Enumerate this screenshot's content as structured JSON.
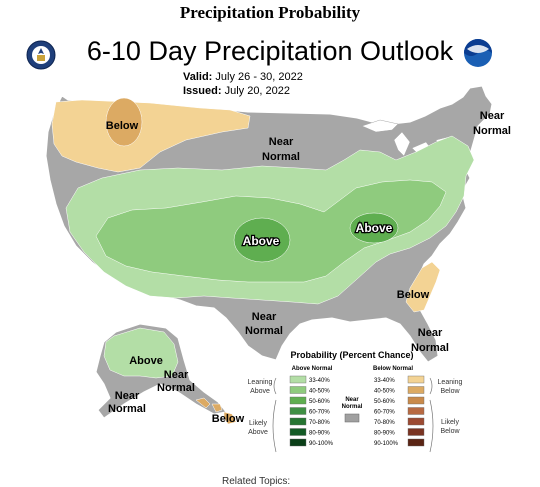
{
  "page": {
    "heading": "Precipitation Probability",
    "footer_text": "Related Topics:"
  },
  "map": {
    "title": "6-10 Day Precipitation Outlook",
    "valid_label": "Valid:",
    "valid_value": "July 26 - 30, 2022",
    "issued_label": "Issued:",
    "issued_value": "July 20, 2022",
    "left_logo_icon": "doc-seal-icon",
    "right_logo_icon": "noaa-logo-icon"
  },
  "regions": {
    "below_northwest": "Below",
    "near_normal_north_1": "Near",
    "near_normal_north_2": "Normal",
    "near_normal_northeast_1": "Near",
    "near_normal_northeast_2": "Normal",
    "above_plains": "Above",
    "above_ohio_valley": "Above",
    "below_southeast": "Below",
    "near_normal_south_1": "Near",
    "near_normal_south_2": "Normal",
    "near_normal_florida_1": "Near",
    "near_normal_florida_2": "Normal",
    "alaska_above": "Above",
    "alaska_near_1_a": "Near",
    "alaska_near_1_b": "Normal",
    "alaska_near_2_a": "Near",
    "alaska_near_2_b": "Normal",
    "hawaii_below": "Below"
  },
  "legend": {
    "title": "Probability (Percent Chance)",
    "above_header": "Above Normal",
    "below_header": "Below Normal",
    "near_normal_label_1": "Near",
    "near_normal_label_2": "Normal",
    "near_normal_color": "#a0a0a0",
    "leaning_above_1": "Leaning",
    "leaning_above_2": "Above",
    "likely_above_1": "Likely",
    "likely_above_2": "Above",
    "leaning_below_1": "Leaning",
    "leaning_below_2": "Below",
    "likely_below_1": "Likely",
    "likely_below_2": "Below",
    "above_bins": [
      {
        "label": "33-40%",
        "color": "#b3dea6"
      },
      {
        "label": "40-50%",
        "color": "#8fcb7e"
      },
      {
        "label": "50-60%",
        "color": "#5fae50"
      },
      {
        "label": "60-70%",
        "color": "#3f8f44"
      },
      {
        "label": "70-80%",
        "color": "#267532"
      },
      {
        "label": "80-90%",
        "color": "#135a25"
      },
      {
        "label": "90-100%",
        "color": "#0a3f18"
      }
    ],
    "below_bins": [
      {
        "label": "33-40%",
        "color": "#f3d394"
      },
      {
        "label": "40-50%",
        "color": "#dcaa63"
      },
      {
        "label": "50-60%",
        "color": "#c98a4b"
      },
      {
        "label": "60-70%",
        "color": "#b86a42"
      },
      {
        "label": "70-80%",
        "color": "#9c4a32"
      },
      {
        "label": "80-90%",
        "color": "#7a3422"
      },
      {
        "label": "90-100%",
        "color": "#5a2414"
      }
    ]
  }
}
